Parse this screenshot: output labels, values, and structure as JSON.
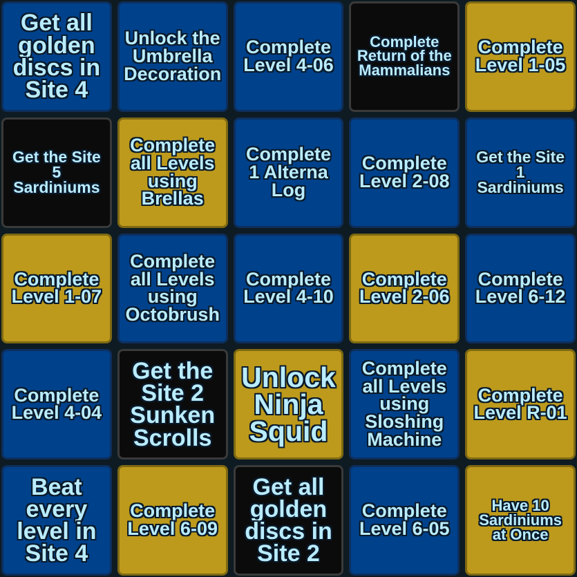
{
  "colors": {
    "blue": "#00418b",
    "gold": "#bd9a1c",
    "black": "#0b0b0b",
    "text": "#b9ecff"
  },
  "cells": [
    {
      "label": "Get all golden discs in Site 4",
      "color": "blue"
    },
    {
      "label": "Unlock the Umbrella Decoration",
      "color": "blue"
    },
    {
      "label": "Complete Level 4-06",
      "color": "blue"
    },
    {
      "label": "Complete Return of the Mammalians",
      "color": "black"
    },
    {
      "label": "Complete Level 1-05",
      "color": "gold"
    },
    {
      "label": "Get the Site 5 Sardiniums",
      "color": "black"
    },
    {
      "label": "Complete all Levels using Brellas",
      "color": "gold"
    },
    {
      "label": "Complete 1 Alterna Log",
      "color": "blue"
    },
    {
      "label": "Complete Level 2-08",
      "color": "blue"
    },
    {
      "label": "Get the Site 1 Sardiniums",
      "color": "blue"
    },
    {
      "label": "Complete Level 1-07",
      "color": "gold"
    },
    {
      "label": "Complete all Levels using Octobrush",
      "color": "blue"
    },
    {
      "label": "Complete Level 4-10",
      "color": "blue"
    },
    {
      "label": "Complete Level 2-06",
      "color": "gold"
    },
    {
      "label": "Complete Level 6-12",
      "color": "blue"
    },
    {
      "label": "Complete Level 4-04",
      "color": "blue"
    },
    {
      "label": "Get the Site 2 Sunken Scrolls",
      "color": "black"
    },
    {
      "label": "Unlock Ninja Squid",
      "color": "gold"
    },
    {
      "label": "Complete all Levels using Sloshing Machine",
      "color": "blue"
    },
    {
      "label": "Complete Level R-01",
      "color": "gold"
    },
    {
      "label": "Beat every level in Site 4",
      "color": "blue"
    },
    {
      "label": "Complete Level 6-09",
      "color": "gold"
    },
    {
      "label": "Get all golden discs in Site 2",
      "color": "black"
    },
    {
      "label": "Complete Level 6-05",
      "color": "blue"
    },
    {
      "label": "Have 10 Sardiniums at Once",
      "color": "gold"
    }
  ]
}
